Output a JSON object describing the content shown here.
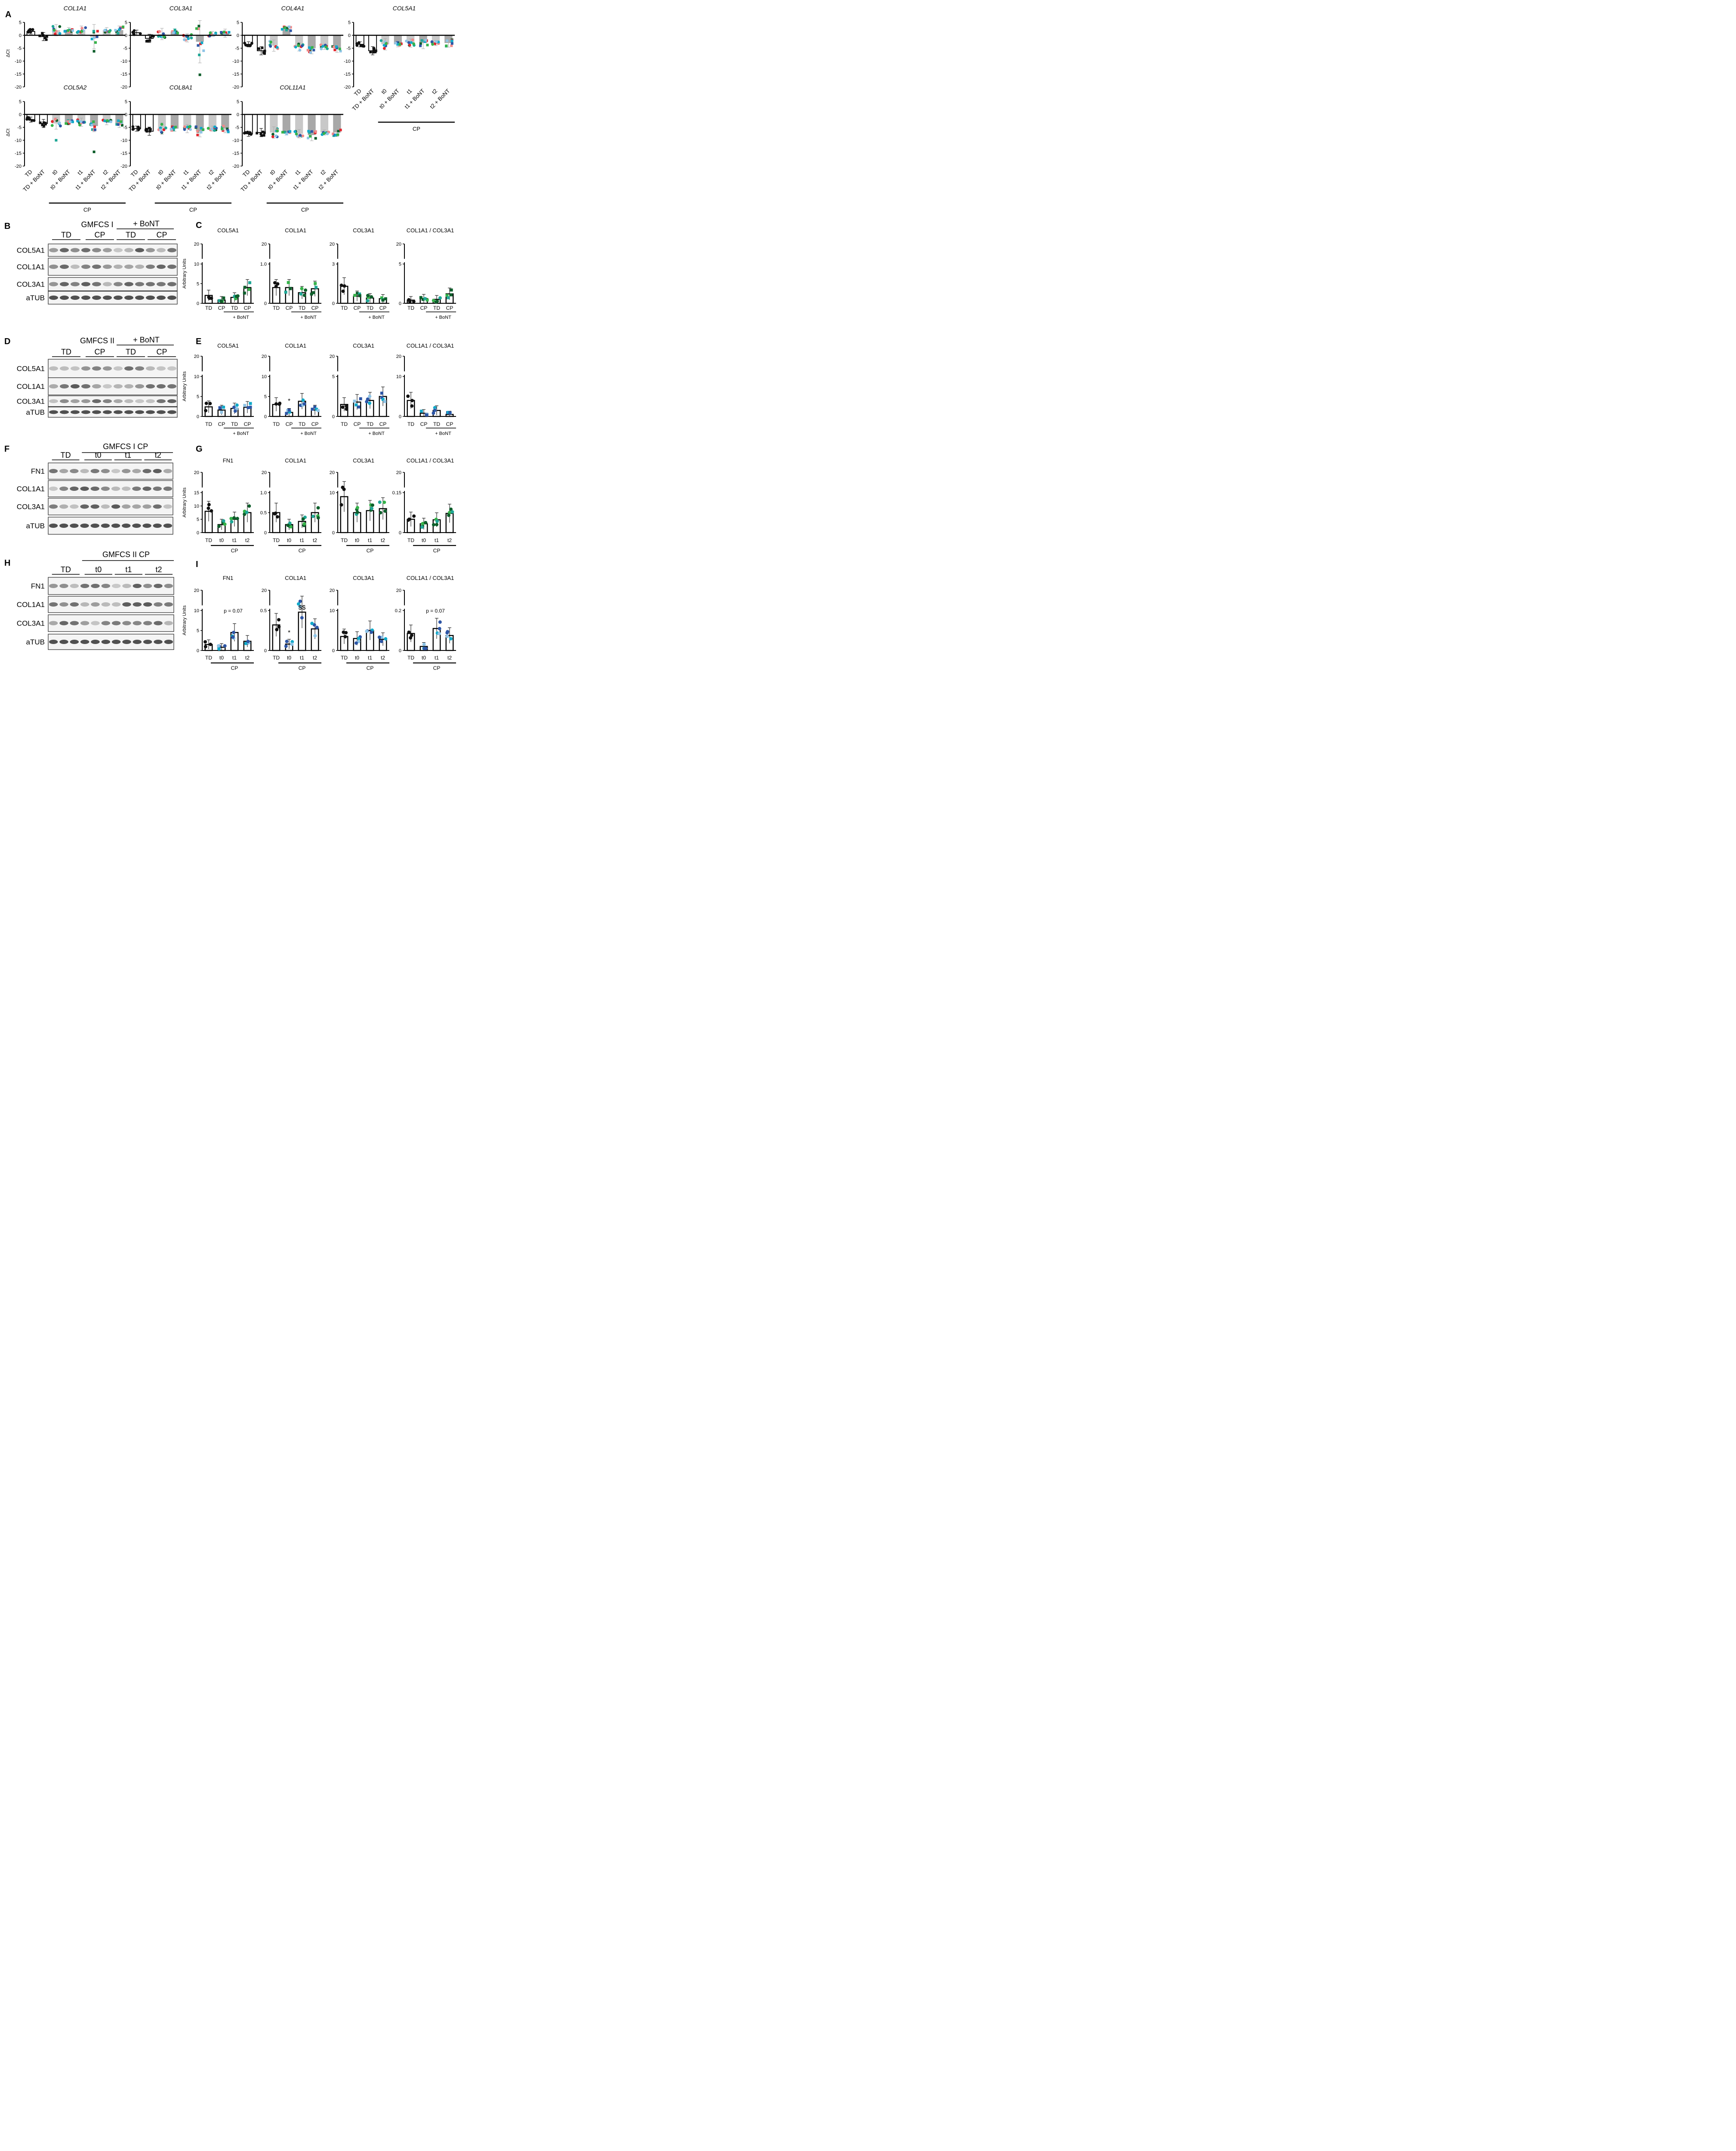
{
  "panel_letters": [
    "A",
    "B",
    "C",
    "D",
    "E",
    "F",
    "G",
    "H",
    "I"
  ],
  "group_labels": [
    "TD",
    "TD + BoNT",
    "t0",
    "t0 + BoNT",
    "t1",
    "t1 + BoNT",
    "t2",
    "t2 + BoNT"
  ],
  "cp_label": "CP",
  "bont_label": "+ BoNT",
  "colors": {
    "black": "#111111",
    "grey": "#c8c8c8",
    "greyDark": "#a8a8a8",
    "accents": [
      "#0e5e2b",
      "#e2262d",
      "#1fa796",
      "#f08a8a",
      "#2d55a5",
      "#12a9c9",
      "#8fc4e6",
      "#36b34a"
    ]
  },
  "delta_ct": {
    "ylabel": "ΔCt",
    "ticks": [
      5,
      0,
      -5,
      -10,
      -15,
      -20
    ],
    "genes": [
      "COL1A1",
      "COL3A1",
      "COL4A1",
      "COL5A1",
      "COL5A2",
      "COL8A1",
      "COL11A1"
    ],
    "means": [
      [
        1.5,
        -0.5,
        2,
        2,
        2,
        -0.5,
        2,
        2
      ],
      [
        1,
        -1.2,
        0.5,
        1.5,
        -1,
        -2.5,
        0.5,
        0.8
      ],
      [
        -3.5,
        -6,
        -4,
        2.5,
        -4.5,
        -5,
        -4.5,
        -5
      ],
      [
        -3.5,
        -6,
        -3.5,
        -3.5,
        -3,
        -3,
        -3,
        -3
      ],
      [
        -2,
        -3.5,
        -3.5,
        -3,
        -3,
        -4.5,
        -3,
        -3.5
      ],
      [
        -5.5,
        -6.5,
        -5.5,
        -5.5,
        -5.5,
        -6.5,
        -5.5,
        -5.5
      ],
      [
        -7.5,
        -7,
        -7,
        -7,
        -7.5,
        -8,
        -7,
        -7
      ]
    ]
  },
  "western_blots": [
    {
      "title": "GMFCS I",
      "groups": [
        "TD",
        "CP",
        "TD",
        "CP"
      ],
      "bont": "+ BoNT",
      "bands": [
        "COL5A1",
        "COL1A1",
        "COL3A1",
        "aTUB"
      ]
    },
    {
      "title": "GMFCS II",
      "groups": [
        "TD",
        "CP",
        "TD",
        "CP"
      ],
      "bont": "+ BoNT",
      "bands": [
        "COL5A1",
        "COL1A1",
        "COL3A1",
        "aTUB"
      ]
    },
    {
      "title": "GMFCS I CP",
      "groups": [
        "TD",
        "t0",
        "t1",
        "t2"
      ],
      "bands": [
        "FN1",
        "COL1A1",
        "COL3A1",
        "aTUB"
      ]
    },
    {
      "title": "GMFCS II CP",
      "groups": [
        "TD",
        "t0",
        "t1",
        "t2"
      ],
      "bands": [
        "FN1",
        "COL1A1",
        "COL3A1",
        "aTUB"
      ]
    }
  ],
  "chart_data": [
    {
      "panel": "A",
      "type": "bar",
      "title": "COL1A1",
      "categories": [
        "TD",
        "TD + BoNT",
        "t0",
        "t0 + BoNT",
        "t1",
        "t1 + BoNT",
        "t2",
        "t2 + BoNT"
      ],
      "values": [
        1.5,
        -0.5,
        2,
        2,
        2,
        -0.5,
        2,
        2
      ],
      "ylabel": "ΔCt",
      "ylim": [
        -20,
        5
      ]
    },
    {
      "panel": "A",
      "type": "bar",
      "title": "COL3A1",
      "categories": [
        "TD",
        "TD + BoNT",
        "t0",
        "t0 + BoNT",
        "t1",
        "t1 + BoNT",
        "t2",
        "t2 + BoNT"
      ],
      "values": [
        1,
        -1.2,
        0.5,
        1.5,
        -1,
        -2.5,
        0.5,
        0.8
      ],
      "ylim": [
        -20,
        5
      ]
    },
    {
      "panel": "A",
      "type": "bar",
      "title": "COL4A1",
      "categories": [
        "TD",
        "TD + BoNT",
        "t0",
        "t0 + BoNT",
        "t1",
        "t1 + BoNT",
        "t2",
        "t2 + BoNT"
      ],
      "values": [
        -3.5,
        -6,
        -4,
        2.5,
        -4.5,
        -5,
        -4.5,
        -5
      ],
      "ylim": [
        -20,
        5
      ]
    },
    {
      "panel": "A",
      "type": "bar",
      "title": "COL5A1",
      "categories": [
        "TD",
        "TD + BoNT",
        "t0",
        "t0 + BoNT",
        "t1",
        "t1 + BoNT",
        "t2",
        "t2 + BoNT"
      ],
      "values": [
        -3.5,
        -6,
        -3.5,
        -3.5,
        -3,
        -3,
        -3,
        -3
      ],
      "ylim": [
        -20,
        5
      ]
    },
    {
      "panel": "A",
      "type": "bar",
      "title": "COL5A2",
      "categories": [
        "TD",
        "TD + BoNT",
        "t0",
        "t0 + BoNT",
        "t1",
        "t1 + BoNT",
        "t2",
        "t2 + BoNT"
      ],
      "values": [
        -2,
        -3.5,
        -3.5,
        -3,
        -3,
        -4.5,
        -3,
        -3.5
      ],
      "ylabel": "ΔCt",
      "ylim": [
        -20,
        5
      ]
    },
    {
      "panel": "A",
      "type": "bar",
      "title": "COL8A1",
      "categories": [
        "TD",
        "TD + BoNT",
        "t0",
        "t0 + BoNT",
        "t1",
        "t1 + BoNT",
        "t2",
        "t2 + BoNT"
      ],
      "values": [
        -5.5,
        -6.5,
        -5.5,
        -5.5,
        -5.5,
        -6.5,
        -5.5,
        -5.5
      ],
      "ylim": [
        -20,
        5
      ]
    },
    {
      "panel": "A",
      "type": "bar",
      "title": "COL11A1",
      "categories": [
        "TD",
        "TD + BoNT",
        "t0",
        "t0 + BoNT",
        "t1",
        "t1 + BoNT",
        "t2",
        "t2 + BoNT"
      ],
      "values": [
        -7.5,
        -7,
        -7,
        -7,
        -7.5,
        -8,
        -7,
        -7
      ],
      "ylim": [
        -20,
        5
      ]
    },
    {
      "panel": "C",
      "type": "bar",
      "title": "COL5A1",
      "categories": [
        "TD",
        "CP",
        "TD",
        "CP"
      ],
      "values": [
        2,
        0.8,
        1.5,
        4
      ],
      "ylabel": "Arbitrary Units",
      "yticks": [
        "0",
        "5",
        "10",
        "20"
      ]
    },
    {
      "panel": "C",
      "type": "bar",
      "title": "COL1A1",
      "categories": [
        "TD",
        "CP",
        "TD",
        "CP"
      ],
      "values": [
        0.4,
        0.4,
        0.27,
        0.37
      ],
      "yticks": [
        "0",
        "1.0",
        "20"
      ]
    },
    {
      "panel": "C",
      "type": "bar",
      "title": "COL3A1",
      "categories": [
        "TD",
        "CP",
        "TD",
        "CP"
      ],
      "values": [
        1.3,
        0.55,
        0.4,
        0.35
      ],
      "yticks": [
        "0",
        "3",
        "20"
      ]
    },
    {
      "panel": "C",
      "type": "bar",
      "title": "COL1A1 / COL3A1",
      "categories": [
        "TD",
        "CP",
        "TD",
        "CP"
      ],
      "values": [
        0.4,
        0.6,
        0.5,
        1.2
      ],
      "yticks": [
        "0",
        "5",
        "20"
      ]
    },
    {
      "panel": "E",
      "type": "bar",
      "title": "COL5A1",
      "categories": [
        "TD",
        "CP",
        "TD",
        "CP"
      ],
      "values": [
        2.4,
        1.6,
        2,
        2.3
      ],
      "ylabel": "Arbitrary Units",
      "yticks": [
        "0",
        "5",
        "10",
        "20"
      ]
    },
    {
      "panel": "E",
      "type": "bar",
      "title": "COL1A1",
      "categories": [
        "TD",
        "CP",
        "TD",
        "CP"
      ],
      "values": [
        3,
        1,
        3.8,
        1.6
      ],
      "yticks": [
        "0",
        "5",
        "10",
        "20"
      ],
      "annotations": [
        "*"
      ]
    },
    {
      "panel": "E",
      "type": "bar",
      "title": "COL3A1",
      "categories": [
        "TD",
        "CP",
        "TD",
        "CP"
      ],
      "values": [
        1.5,
        1.8,
        2,
        2.5
      ],
      "yticks": [
        "0",
        "5",
        "20"
      ]
    },
    {
      "panel": "E",
      "type": "bar",
      "title": "COL1A1 / COL3A1",
      "categories": [
        "TD",
        "CP",
        "TD",
        "CP"
      ],
      "values": [
        4,
        0.8,
        1.5,
        0.5
      ],
      "yticks": [
        "0",
        "10",
        "20"
      ]
    },
    {
      "panel": "G",
      "type": "bar",
      "title": "FN1",
      "categories": [
        "TD",
        "t0",
        "t1",
        "t2"
      ],
      "values": [
        8,
        3,
        5,
        7.5
      ],
      "ylabel": "Arbitrary Units",
      "yticks": [
        "0",
        "5",
        "10",
        "15",
        "20"
      ]
    },
    {
      "panel": "G",
      "type": "bar",
      "title": "COL1A1",
      "categories": [
        "TD",
        "t0",
        "t1",
        "t2"
      ],
      "values": [
        0.5,
        0.2,
        0.28,
        0.5
      ],
      "yticks": [
        "0",
        "0.5",
        "1.0",
        "20"
      ]
    },
    {
      "panel": "G",
      "type": "bar",
      "title": "COL3A1",
      "categories": [
        "TD",
        "t0",
        "t1",
        "t2"
      ],
      "values": [
        9,
        5,
        5.5,
        6
      ],
      "yticks": [
        "0",
        "10",
        "20"
      ]
    },
    {
      "panel": "G",
      "type": "bar",
      "title": "COL1A1 / COL3A1",
      "categories": [
        "TD",
        "t0",
        "t1",
        "t2"
      ],
      "values": [
        0.05,
        0.033,
        0.048,
        0.072
      ],
      "yticks": [
        "0",
        "0.15",
        "20"
      ]
    },
    {
      "panel": "I",
      "type": "bar",
      "title": "FN1",
      "categories": [
        "TD",
        "t0",
        "t1",
        "t2"
      ],
      "values": [
        1.5,
        0.8,
        4.5,
        2.3
      ],
      "ylabel": "Arbitrary Units",
      "yticks": [
        "0",
        "5",
        "10",
        "20"
      ],
      "annotations": [
        "p = 0.07"
      ]
    },
    {
      "panel": "I",
      "type": "bar",
      "title": "COL1A1",
      "categories": [
        "TD",
        "t0",
        "t1",
        "t2"
      ],
      "values": [
        0.32,
        0.08,
        0.48,
        0.27
      ],
      "yticks": [
        "0",
        "0.5",
        "20"
      ],
      "annotations": [
        "*",
        "$$"
      ]
    },
    {
      "panel": "I",
      "type": "bar",
      "title": "COL3A1",
      "categories": [
        "TD",
        "t0",
        "t1",
        "t2"
      ],
      "values": [
        3.5,
        3,
        5,
        2.8
      ],
      "yticks": [
        "0",
        "10",
        "20"
      ]
    },
    {
      "panel": "I",
      "type": "bar",
      "title": "COL1A1 / COL3A1",
      "categories": [
        "TD",
        "t0",
        "t1",
        "t2"
      ],
      "values": [
        0.085,
        0.02,
        0.11,
        0.075
      ],
      "yticks": [
        "0",
        "0.2",
        "20"
      ],
      "annotations": [
        "p = 0.07"
      ]
    }
  ]
}
